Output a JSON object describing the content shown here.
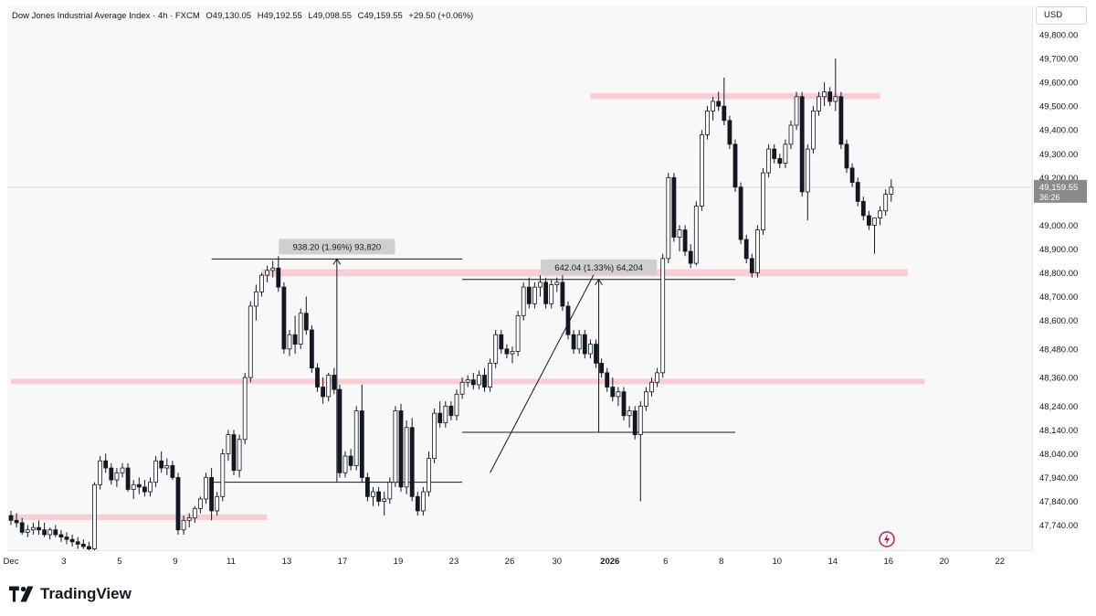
{
  "legend": {
    "symbol": "Dow Jones Industrial Average Index · 4h · FXCM",
    "open": "O49,130.05",
    "high": "H49,192.55",
    "low": "L49,098.55",
    "close": "C49,159.55",
    "change": "+29.50 (+0.06%)"
  },
  "currency": "USD",
  "brand": "TradingView",
  "colors": {
    "up": "#ffffff",
    "down": "#131722",
    "zone": "#f7c9cf",
    "measure_label_bg": "#cfcfcf",
    "grid_line": "#dcdcdc"
  },
  "chart_data": {
    "type": "candlestick",
    "title": "",
    "xlabel": "",
    "ylabel": "",
    "ylim": [
      47650,
      49900
    ],
    "y_ticks": [
      "49,800.00",
      "49,700.00",
      "49,600.00",
      "49,500.00",
      "49,400.00",
      "49,300.00",
      "49,200.00",
      "49,000.00",
      "48,900.00",
      "48,800.00",
      "48,700.00",
      "48,600.00",
      "48,480.00",
      "48,360.00",
      "48,240.00",
      "48,140.00",
      "48,040.00",
      "47,940.00",
      "47,840.00",
      "47,740.00"
    ],
    "y_tick_values": [
      49800,
      49700,
      49600,
      49500,
      49400,
      49300,
      49200,
      49000,
      48900,
      48800,
      48700,
      48600,
      48480,
      48360,
      48240,
      48140,
      48040,
      47940,
      47840,
      47740
    ],
    "x_ticks": [
      {
        "label": "Dec",
        "i": 0
      },
      {
        "label": "3",
        "i": 9.5
      },
      {
        "label": "5",
        "i": 19.5
      },
      {
        "label": "9",
        "i": 29.5
      },
      {
        "label": "11",
        "i": 39.5
      },
      {
        "label": "13",
        "i": 49.5
      },
      {
        "label": "17",
        "i": 59.5
      },
      {
        "label": "19",
        "i": 69.5
      },
      {
        "label": "23",
        "i": 79.5
      },
      {
        "label": "26",
        "i": 89.5
      },
      {
        "label": "30",
        "i": 98
      },
      {
        "label": "2026",
        "i": 107.5
      },
      {
        "label": "6",
        "i": 117.5
      },
      {
        "label": "8",
        "i": 127.5
      },
      {
        "label": "10",
        "i": 137.5
      },
      {
        "label": "14",
        "i": 147.5
      },
      {
        "label": "16",
        "i": 157.5
      },
      {
        "label": "20",
        "i": 167.5
      },
      {
        "label": "22",
        "i": 177.5
      }
    ],
    "current_price": "49,159.55",
    "countdown": "36:26",
    "current_price_value": 49159.55,
    "zones": [
      {
        "from_i": 104,
        "to_i": 156,
        "low": 49530,
        "high": 49555
      },
      {
        "from_i": 45,
        "to_i": 161,
        "low": 48785,
        "high": 48815
      },
      {
        "from_i": 0,
        "to_i": 164,
        "low": 48335,
        "high": 48355
      },
      {
        "from_i": 0,
        "to_i": 46,
        "low": 47765,
        "high": 47785
      }
    ],
    "measures": [
      {
        "label": "938.20 (1.96%) 93,820",
        "x0_i": 36,
        "x1_i": 81,
        "base": 47920,
        "top": 48858,
        "arrow_i": 58.5
      },
      {
        "label": "642.04 (1.33%) 64,204",
        "x0_i": 81,
        "x1_i": 130,
        "base": 48130,
        "top": 48772,
        "arrow_i": 105.5
      }
    ],
    "trendline": {
      "from_i": 86,
      "from": 47960,
      "to_i": 105,
      "to": 48810
    },
    "candles": [
      [
        47780,
        47800,
        47740,
        47760
      ],
      [
        47760,
        47790,
        47730,
        47750
      ],
      [
        47750,
        47770,
        47700,
        47710
      ],
      [
        47710,
        47740,
        47690,
        47720
      ],
      [
        47720,
        47750,
        47700,
        47730
      ],
      [
        47730,
        47760,
        47700,
        47720
      ],
      [
        47720,
        47750,
        47690,
        47700
      ],
      [
        47700,
        47730,
        47680,
        47720
      ],
      [
        47720,
        47740,
        47690,
        47700
      ],
      [
        47700,
        47720,
        47670,
        47690
      ],
      [
        47690,
        47710,
        47660,
        47680
      ],
      [
        47680,
        47700,
        47650,
        47670
      ],
      [
        47670,
        47690,
        47640,
        47660
      ],
      [
        47660,
        47680,
        47640,
        47650
      ],
      [
        47650,
        47670,
        47620,
        47640
      ],
      [
        47640,
        47920,
        47620,
        47910
      ],
      [
        47910,
        48030,
        47890,
        48010
      ],
      [
        48010,
        48040,
        47960,
        47980
      ],
      [
        47980,
        48000,
        47910,
        47930
      ],
      [
        47930,
        47980,
        47900,
        47960
      ],
      [
        47960,
        48000,
        47940,
        47980
      ],
      [
        47980,
        48000,
        47880,
        47890
      ],
      [
        47890,
        47930,
        47850,
        47910
      ],
      [
        47910,
        47940,
        47870,
        47900
      ],
      [
        47900,
        47930,
        47860,
        47880
      ],
      [
        47880,
        47940,
        47860,
        47920
      ],
      [
        47920,
        48030,
        47900,
        48010
      ],
      [
        48010,
        48050,
        47960,
        47980
      ],
      [
        47980,
        48020,
        47950,
        47990
      ],
      [
        47990,
        48010,
        47930,
        47940
      ],
      [
        47940,
        47960,
        47700,
        47720
      ],
      [
        47720,
        47780,
        47700,
        47760
      ],
      [
        47760,
        47790,
        47730,
        47770
      ],
      [
        47770,
        47820,
        47750,
        47810
      ],
      [
        47810,
        47860,
        47790,
        47850
      ],
      [
        47850,
        47960,
        47830,
        47940
      ],
      [
        47940,
        47980,
        47760,
        47800
      ],
      [
        47800,
        47880,
        47780,
        47860
      ],
      [
        47860,
        48060,
        47840,
        48040
      ],
      [
        48040,
        48140,
        48010,
        48120
      ],
      [
        48120,
        48140,
        47950,
        47970
      ],
      [
        47970,
        48120,
        47940,
        48100
      ],
      [
        48100,
        48380,
        48080,
        48360
      ],
      [
        48360,
        48680,
        48340,
        48660
      ],
      [
        48660,
        48750,
        48600,
        48720
      ],
      [
        48720,
        48800,
        48700,
        48790
      ],
      [
        48790,
        48830,
        48760,
        48810
      ],
      [
        48810,
        48850,
        48780,
        48820
      ],
      [
        48820,
        48870,
        48720,
        48740
      ],
      [
        48740,
        48760,
        48460,
        48480
      ],
      [
        48480,
        48560,
        48450,
        48540
      ],
      [
        48540,
        48620,
        48460,
        48500
      ],
      [
        48500,
        48650,
        48480,
        48630
      ],
      [
        48630,
        48700,
        48540,
        48560
      ],
      [
        48560,
        48580,
        48380,
        48400
      ],
      [
        48400,
        48420,
        48300,
        48320
      ],
      [
        48320,
        48360,
        48250,
        48280
      ],
      [
        48280,
        48380,
        48260,
        48370
      ],
      [
        48370,
        48400,
        48290,
        48310
      ],
      [
        48310,
        48330,
        47940,
        47960
      ],
      [
        47960,
        48050,
        47940,
        48030
      ],
      [
        48030,
        48060,
        47970,
        47990
      ],
      [
        47990,
        48240,
        47970,
        48220
      ],
      [
        48220,
        48330,
        47920,
        47940
      ],
      [
        47940,
        47960,
        47840,
        47860
      ],
      [
        47860,
        47900,
        47820,
        47880
      ],
      [
        47880,
        47900,
        47820,
        47840
      ],
      [
        47840,
        47880,
        47780,
        47850
      ],
      [
        47850,
        47940,
        47830,
        47920
      ],
      [
        47920,
        48240,
        47900,
        48220
      ],
      [
        48220,
        48250,
        47880,
        47900
      ],
      [
        47900,
        48180,
        47870,
        48150
      ],
      [
        48150,
        48190,
        47840,
        47860
      ],
      [
        47860,
        47880,
        47780,
        47800
      ],
      [
        47800,
        47900,
        47780,
        47880
      ],
      [
        47880,
        48050,
        47860,
        48020
      ],
      [
        48020,
        48230,
        48000,
        48210
      ],
      [
        48210,
        48260,
        48150,
        48170
      ],
      [
        48170,
        48260,
        48150,
        48240
      ],
      [
        48240,
        48260,
        48180,
        48200
      ],
      [
        48200,
        48310,
        48180,
        48290
      ],
      [
        48290,
        48360,
        48270,
        48340
      ],
      [
        48340,
        48370,
        48320,
        48350
      ],
      [
        48350,
        48380,
        48310,
        48330
      ],
      [
        48330,
        48390,
        48310,
        48370
      ],
      [
        48370,
        48400,
        48300,
        48320
      ],
      [
        48320,
        48440,
        48300,
        48420
      ],
      [
        48420,
        48560,
        48400,
        48540
      ],
      [
        48540,
        48560,
        48460,
        48480
      ],
      [
        48480,
        48500,
        48440,
        48460
      ],
      [
        48460,
        48490,
        48420,
        48470
      ],
      [
        48470,
        48640,
        48450,
        48620
      ],
      [
        48620,
        48760,
        48600,
        48740
      ],
      [
        48740,
        48780,
        48650,
        48670
      ],
      [
        48670,
        48760,
        48650,
        48740
      ],
      [
        48740,
        48790,
        48700,
        48760
      ],
      [
        48760,
        48780,
        48650,
        48670
      ],
      [
        48670,
        48770,
        48650,
        48750
      ],
      [
        48750,
        48780,
        48720,
        48760
      ],
      [
        48760,
        48790,
        48640,
        48660
      ],
      [
        48660,
        48680,
        48520,
        48540
      ],
      [
        48540,
        48560,
        48460,
        48480
      ],
      [
        48480,
        48560,
        48460,
        48540
      ],
      [
        48540,
        48560,
        48440,
        48460
      ],
      [
        48460,
        48520,
        48440,
        48500
      ],
      [
        48500,
        48520,
        48400,
        48420
      ],
      [
        48420,
        48440,
        48360,
        48380
      ],
      [
        48380,
        48400,
        48300,
        48320
      ],
      [
        48320,
        48360,
        48260,
        48280
      ],
      [
        48280,
        48320,
        48240,
        48300
      ],
      [
        48300,
        48320,
        48180,
        48200
      ],
      [
        48200,
        48240,
        48150,
        48220
      ],
      [
        48220,
        48240,
        48100,
        48120
      ],
      [
        48120,
        48260,
        47840,
        48240
      ],
      [
        48240,
        48320,
        48220,
        48300
      ],
      [
        48300,
        48360,
        48280,
        48340
      ],
      [
        48340,
        48400,
        48320,
        48380
      ],
      [
        48380,
        48880,
        48360,
        48860
      ],
      [
        48860,
        49220,
        48840,
        49200
      ],
      [
        49200,
        49220,
        48930,
        48950
      ],
      [
        48950,
        49000,
        48890,
        48980
      ],
      [
        48980,
        49000,
        48870,
        48890
      ],
      [
        48890,
        48920,
        48820,
        48840
      ],
      [
        48840,
        49100,
        48830,
        49080
      ],
      [
        49080,
        49400,
        49060,
        49380
      ],
      [
        49380,
        49500,
        49360,
        49480
      ],
      [
        49480,
        49540,
        49440,
        49520
      ],
      [
        49520,
        49560,
        49480,
        49500
      ],
      [
        49500,
        49620,
        49420,
        49440
      ],
      [
        49440,
        49460,
        49320,
        49340
      ],
      [
        49340,
        49360,
        49140,
        49160
      ],
      [
        49160,
        49180,
        48920,
        48940
      ],
      [
        48940,
        48960,
        48840,
        48860
      ],
      [
        48860,
        48880,
        48780,
        48800
      ],
      [
        48800,
        49000,
        48780,
        48980
      ],
      [
        48980,
        49240,
        48960,
        49220
      ],
      [
        49220,
        49340,
        49200,
        49320
      ],
      [
        49320,
        49340,
        49260,
        49280
      ],
      [
        49280,
        49300,
        49240,
        49260
      ],
      [
        49260,
        49360,
        49240,
        49340
      ],
      [
        49340,
        49440,
        49320,
        49420
      ],
      [
        49420,
        49560,
        49400,
        49540
      ],
      [
        49540,
        49560,
        49120,
        49140
      ],
      [
        49140,
        49340,
        49020,
        49320
      ],
      [
        49320,
        49500,
        49300,
        49480
      ],
      [
        49480,
        49560,
        49460,
        49540
      ],
      [
        49540,
        49600,
        49500,
        49560
      ],
      [
        49560,
        49580,
        49500,
        49520
      ],
      [
        49520,
        49700,
        49480,
        49540
      ],
      [
        49540,
        49560,
        49320,
        49340
      ],
      [
        49340,
        49360,
        49220,
        49240
      ],
      [
        49240,
        49260,
        49160,
        49180
      ],
      [
        49180,
        49200,
        49080,
        49100
      ],
      [
        49100,
        49120,
        49020,
        49040
      ],
      [
        49040,
        49060,
        48980,
        49000
      ],
      [
        49000,
        49020,
        48880,
        49030
      ],
      [
        49030,
        49080,
        49000,
        49060
      ],
      [
        49060,
        49150,
        49040,
        49130
      ],
      [
        49130,
        49192.55,
        49098.55,
        49159.55
      ]
    ]
  }
}
